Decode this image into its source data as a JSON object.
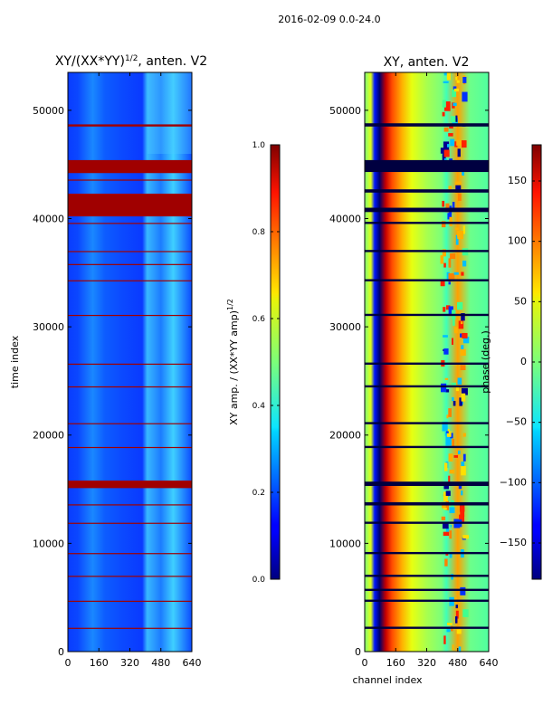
{
  "figure_title": "2016-02-09 0.0-24.0",
  "chart_data": [
    {
      "type": "heatmap",
      "title": "XY/(XX*YY)",
      "title_exponent": "1/2",
      "title_suffix": ", anten. V2",
      "xlabel": "",
      "ylabel": "time index",
      "xlim": [
        0,
        640
      ],
      "ylim": [
        0,
        53500
      ],
      "xticks": [
        0,
        160,
        320,
        480,
        640
      ],
      "yticks": [
        0,
        10000,
        20000,
        30000,
        40000,
        50000
      ],
      "colorbar": {
        "label": "XY amp. / (XX*YY amp)",
        "label_exponent": "1/2",
        "range": [
          0.0,
          1.0
        ],
        "ticks": [
          "0.0",
          "0.2",
          "0.4",
          "0.6",
          "0.8",
          "1.0"
        ]
      },
      "colormap": "jet"
    },
    {
      "type": "heatmap",
      "title": "XY, anten. V2",
      "xlabel": "channel index",
      "ylabel": "",
      "xlim": [
        0,
        640
      ],
      "ylim": [
        0,
        53500
      ],
      "xticks": [
        0,
        160,
        320,
        480,
        640
      ],
      "yticks": [
        0,
        10000,
        20000,
        30000,
        40000,
        50000
      ],
      "colorbar": {
        "label": "phase (deg.)",
        "range": [
          -180,
          180
        ],
        "ticks": [
          "−150",
          "−100",
          "−50",
          "0",
          "50",
          "100",
          "150"
        ],
        "tick_values": [
          -150,
          -100,
          -50,
          0,
          50,
          100,
          150
        ]
      },
      "colormap": "jet"
    }
  ],
  "flagged_rows_amp": [
    {
      "t0": 40200,
      "t1": 42300
    },
    {
      "t0": 44200,
      "t1": 45400
    },
    {
      "t0": 48500,
      "t1": 48700
    },
    {
      "t0": 43500,
      "t1": 43600
    },
    {
      "t0": 39500,
      "t1": 39600
    },
    {
      "t0": 36900,
      "t1": 37000
    },
    {
      "t0": 35700,
      "t1": 35800
    },
    {
      "t0": 34200,
      "t1": 34300
    },
    {
      "t0": 31000,
      "t1": 31100
    },
    {
      "t0": 26500,
      "t1": 26600
    },
    {
      "t0": 24400,
      "t1": 24500
    },
    {
      "t0": 21000,
      "t1": 21100
    },
    {
      "t0": 18800,
      "t1": 18900
    },
    {
      "t0": 15100,
      "t1": 15800
    },
    {
      "t0": 13500,
      "t1": 13600
    },
    {
      "t0": 11800,
      "t1": 11900
    },
    {
      "t0": 9000,
      "t1": 9100
    },
    {
      "t0": 6900,
      "t1": 7000
    },
    {
      "t0": 4600,
      "t1": 4700
    },
    {
      "t0": 2100,
      "t1": 2200
    }
  ],
  "flagged_rows_phase": [
    {
      "t0": 40600,
      "t1": 41000
    },
    {
      "t0": 44300,
      "t1": 45400
    },
    {
      "t0": 48500,
      "t1": 48800
    },
    {
      "t0": 42400,
      "t1": 42700
    },
    {
      "t0": 39500,
      "t1": 39700
    },
    {
      "t0": 36900,
      "t1": 37100
    },
    {
      "t0": 34200,
      "t1": 34400
    },
    {
      "t0": 31000,
      "t1": 31200
    },
    {
      "t0": 26500,
      "t1": 26700
    },
    {
      "t0": 24400,
      "t1": 24600
    },
    {
      "t0": 21000,
      "t1": 21200
    },
    {
      "t0": 18800,
      "t1": 19000
    },
    {
      "t0": 15300,
      "t1": 15700
    },
    {
      "t0": 13500,
      "t1": 13800
    },
    {
      "t0": 11800,
      "t1": 12000
    },
    {
      "t0": 9000,
      "t1": 9200
    },
    {
      "t0": 6900,
      "t1": 7100
    },
    {
      "t0": 5600,
      "t1": 5800
    },
    {
      "t0": 4600,
      "t1": 4800
    },
    {
      "t0": 2100,
      "t1": 2300
    }
  ]
}
